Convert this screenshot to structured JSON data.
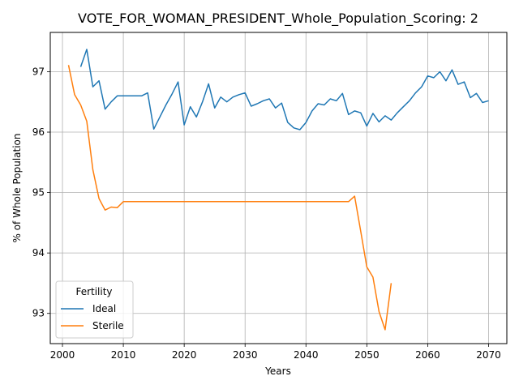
{
  "chart_data": {
    "type": "line",
    "title": "VOTE_FOR_WOMAN_PRESIDENT_Whole_Population_Scoring: 2",
    "xlabel": "Years",
    "ylabel": "% of Whole Population",
    "xlim": [
      1998,
      2073
    ],
    "ylim": [
      92.5,
      97.65
    ],
    "xticks": [
      2000,
      2010,
      2020,
      2030,
      2040,
      2050,
      2060,
      2070
    ],
    "yticks": [
      93,
      94,
      95,
      96,
      97
    ],
    "grid": true,
    "legend": {
      "title": "Fertility",
      "placement": "lower-left"
    },
    "series": [
      {
        "name": "Ideal",
        "color": "#1f77b4",
        "x": [
          2003,
          2004,
          2005,
          2006,
          2007,
          2008,
          2009,
          2010,
          2011,
          2012,
          2013,
          2014,
          2015,
          2016,
          2017,
          2018,
          2019,
          2020,
          2021,
          2022,
          2023,
          2024,
          2025,
          2026,
          2027,
          2028,
          2029,
          2030,
          2031,
          2032,
          2033,
          2034,
          2035,
          2036,
          2037,
          2038,
          2039,
          2040,
          2041,
          2042,
          2043,
          2044,
          2045,
          2046,
          2047,
          2048,
          2049,
          2050,
          2051,
          2052,
          2053,
          2054,
          2055,
          2056,
          2057,
          2058,
          2059,
          2060,
          2061,
          2062,
          2063,
          2064,
          2065,
          2066,
          2067,
          2068,
          2069,
          2070
        ],
        "values": [
          97.08,
          97.37,
          96.75,
          96.85,
          96.38,
          96.5,
          96.6,
          96.6,
          96.6,
          96.6,
          96.6,
          96.65,
          96.05,
          96.25,
          96.45,
          96.63,
          96.83,
          96.12,
          96.42,
          96.25,
          96.5,
          96.8,
          96.4,
          96.58,
          96.5,
          96.58,
          96.62,
          96.65,
          96.43,
          96.47,
          96.52,
          96.55,
          96.4,
          96.48,
          96.16,
          96.07,
          96.04,
          96.16,
          96.35,
          96.47,
          96.45,
          96.55,
          96.52,
          96.64,
          96.29,
          96.35,
          96.32,
          96.1,
          96.31,
          96.17,
          96.27,
          96.2,
          96.32,
          96.42,
          96.52,
          96.65,
          96.75,
          96.93,
          96.9,
          97.0,
          96.85,
          97.03,
          96.79,
          96.83,
          96.57,
          96.64,
          96.49,
          96.52
        ]
      },
      {
        "name": "Sterile",
        "color": "#ff7f0e",
        "x": [
          2001,
          2002,
          2003,
          2004,
          2005,
          2006,
          2007,
          2008,
          2009,
          2010,
          2011,
          2012,
          2013,
          2014,
          2015,
          2016,
          2017,
          2018,
          2019,
          2020,
          2021,
          2022,
          2023,
          2024,
          2025,
          2026,
          2027,
          2028,
          2029,
          2030,
          2031,
          2032,
          2033,
          2034,
          2035,
          2036,
          2037,
          2038,
          2039,
          2040,
          2041,
          2042,
          2043,
          2044,
          2045,
          2046,
          2047,
          2048,
          2049,
          2050,
          2051,
          2052,
          2053,
          2054
        ],
        "values": [
          97.11,
          96.62,
          96.45,
          96.18,
          95.38,
          94.9,
          94.71,
          94.76,
          94.75,
          94.85,
          94.85,
          94.85,
          94.85,
          94.85,
          94.85,
          94.85,
          94.85,
          94.85,
          94.85,
          94.85,
          94.85,
          94.85,
          94.85,
          94.85,
          94.85,
          94.85,
          94.85,
          94.85,
          94.85,
          94.85,
          94.85,
          94.85,
          94.85,
          94.85,
          94.85,
          94.85,
          94.85,
          94.85,
          94.85,
          94.85,
          94.85,
          94.85,
          94.85,
          94.85,
          94.85,
          94.85,
          94.85,
          94.94,
          94.36,
          93.77,
          93.6,
          93.03,
          92.73,
          93.5
        ]
      }
    ]
  }
}
